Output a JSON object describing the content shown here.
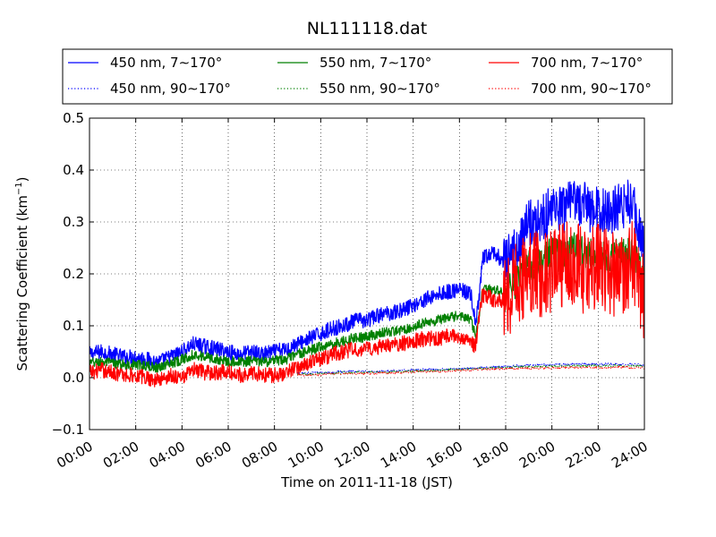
{
  "chart_data": {
    "type": "line",
    "title": "NL111118.dat",
    "xlabel": "Time on 2011-11-18 (JST)",
    "ylabel_prefix": "Scattering Coefficient (km",
    "ylabel_sup": "−1",
    "ylabel_suffix": ")",
    "x_unit": "hour",
    "xlim": [
      0,
      24
    ],
    "ylim": [
      -0.1,
      0.5
    ],
    "xticks": [
      {
        "value": 0,
        "label": "00:00"
      },
      {
        "value": 2,
        "label": "02:00"
      },
      {
        "value": 4,
        "label": "04:00"
      },
      {
        "value": 6,
        "label": "06:00"
      },
      {
        "value": 8,
        "label": "08:00"
      },
      {
        "value": 10,
        "label": "10:00"
      },
      {
        "value": 12,
        "label": "12:00"
      },
      {
        "value": 14,
        "label": "14:00"
      },
      {
        "value": 16,
        "label": "16:00"
      },
      {
        "value": 18,
        "label": "18:00"
      },
      {
        "value": 20,
        "label": "20:00"
      },
      {
        "value": 22,
        "label": "22:00"
      },
      {
        "value": 24,
        "label": "24:00"
      }
    ],
    "yticks": [
      {
        "value": -0.1,
        "label": "−0.1"
      },
      {
        "value": 0.0,
        "label": "0.0"
      },
      {
        "value": 0.1,
        "label": "0.1"
      },
      {
        "value": 0.2,
        "label": "0.2"
      },
      {
        "value": 0.3,
        "label": "0.3"
      },
      {
        "value": 0.4,
        "label": "0.4"
      },
      {
        "value": 0.5,
        "label": "0.5"
      }
    ],
    "grid": true,
    "legend_placement": "top, above plot",
    "series": [
      {
        "name": "450 nm, 7∼170°",
        "color": "#0000ff",
        "dash": "solid",
        "x": [
          0,
          0.5,
          1,
          1.5,
          2,
          2.5,
          3,
          3.5,
          4,
          4.5,
          5,
          5.5,
          6,
          6.5,
          7,
          7.5,
          8,
          8.5,
          9,
          9.5,
          10,
          10.5,
          11,
          11.5,
          12,
          12.5,
          13,
          13.5,
          14,
          14.5,
          15,
          15.5,
          16,
          16.5,
          16.7,
          16.9,
          17,
          17.5,
          18,
          18.5,
          19,
          19.5,
          20,
          20.5,
          21,
          21.5,
          22,
          22.5,
          23,
          23.5,
          24
        ],
        "y": [
          0.045,
          0.05,
          0.045,
          0.04,
          0.04,
          0.035,
          0.03,
          0.04,
          0.05,
          0.065,
          0.06,
          0.055,
          0.05,
          0.045,
          0.05,
          0.045,
          0.05,
          0.055,
          0.065,
          0.075,
          0.085,
          0.095,
          0.1,
          0.11,
          0.11,
          0.12,
          0.125,
          0.13,
          0.14,
          0.15,
          0.16,
          0.165,
          0.17,
          0.16,
          0.1,
          0.17,
          0.23,
          0.24,
          0.22,
          0.25,
          0.3,
          0.3,
          0.33,
          0.32,
          0.34,
          0.33,
          0.32,
          0.32,
          0.33,
          0.34,
          0.24
        ],
        "noise": 0.015
      },
      {
        "name": "550 nm, 7∼170°",
        "color": "#008000",
        "dash": "solid",
        "x": [
          0,
          0.5,
          1,
          1.5,
          2,
          2.5,
          3,
          3.5,
          4,
          4.5,
          5,
          5.5,
          6,
          6.5,
          7,
          7.5,
          8,
          8.5,
          9,
          9.5,
          10,
          10.5,
          11,
          11.5,
          12,
          12.5,
          13,
          13.5,
          14,
          14.5,
          15,
          15.5,
          16,
          16.5,
          16.7,
          16.9,
          17,
          17.5,
          18,
          18.5,
          19,
          19.5,
          20,
          20.5,
          21,
          21.5,
          22,
          22.5,
          23,
          23.5,
          24
        ],
        "y": [
          0.028,
          0.03,
          0.028,
          0.025,
          0.025,
          0.022,
          0.02,
          0.028,
          0.035,
          0.045,
          0.04,
          0.035,
          0.032,
          0.03,
          0.032,
          0.03,
          0.032,
          0.035,
          0.045,
          0.052,
          0.06,
          0.065,
          0.07,
          0.078,
          0.078,
          0.085,
          0.088,
          0.092,
          0.098,
          0.105,
          0.11,
          0.115,
          0.12,
          0.11,
          0.08,
          0.13,
          0.17,
          0.17,
          0.16,
          0.19,
          0.22,
          0.22,
          0.24,
          0.23,
          0.25,
          0.24,
          0.23,
          0.23,
          0.24,
          0.24,
          0.18
        ],
        "noise": 0.01
      },
      {
        "name": "700 nm, 7∼170°",
        "color": "#ff0000",
        "dash": "solid",
        "x": [
          0,
          0.5,
          1,
          1.5,
          2,
          2.5,
          3,
          3.5,
          4,
          4.5,
          5,
          5.5,
          6,
          6.5,
          7,
          7.5,
          8,
          8.5,
          9,
          9.5,
          10,
          10.5,
          11,
          11.5,
          12,
          12.5,
          13,
          13.5,
          14,
          14.5,
          15,
          15.5,
          16,
          16.5,
          16.7,
          16.9,
          17,
          17.5,
          18,
          18.5,
          19,
          19.5,
          20,
          20.5,
          21,
          21.5,
          22,
          22.5,
          23,
          23.5,
          24
        ],
        "y": [
          0.01,
          0.015,
          0.01,
          0.005,
          0.005,
          0.0,
          -0.005,
          0.005,
          0.0,
          0.015,
          0.01,
          0.01,
          0.01,
          0.005,
          0.01,
          0.005,
          0.005,
          0.01,
          0.02,
          0.03,
          0.035,
          0.045,
          0.05,
          0.055,
          0.055,
          0.06,
          0.06,
          0.065,
          0.07,
          0.075,
          0.075,
          0.08,
          0.08,
          0.07,
          0.06,
          0.14,
          0.16,
          0.15,
          0.15,
          0.18,
          0.2,
          0.2,
          0.2,
          0.22,
          0.22,
          0.2,
          0.22,
          0.2,
          0.2,
          0.22,
          0.15
        ],
        "noise": 0.015
      },
      {
        "name": "450 nm, 90∼170°",
        "color": "#0000ff",
        "dash": "dotted",
        "x": [
          9,
          10,
          11,
          12,
          13,
          14,
          15,
          16,
          17,
          18,
          19,
          20,
          21,
          22,
          23,
          24
        ],
        "y": [
          0.008,
          0.01,
          0.012,
          0.012,
          0.013,
          0.015,
          0.016,
          0.018,
          0.02,
          0.022,
          0.024,
          0.025,
          0.026,
          0.026,
          0.026,
          0.025
        ],
        "noise": 0.002
      },
      {
        "name": "550 nm, 90∼170°",
        "color": "#008000",
        "dash": "dotted",
        "x": [
          9,
          10,
          11,
          12,
          13,
          14,
          15,
          16,
          17,
          18,
          19,
          20,
          21,
          22,
          23,
          24
        ],
        "y": [
          0.006,
          0.008,
          0.01,
          0.01,
          0.011,
          0.013,
          0.014,
          0.016,
          0.018,
          0.02,
          0.021,
          0.022,
          0.023,
          0.023,
          0.023,
          0.022
        ],
        "noise": 0.002
      },
      {
        "name": "700 nm, 90∼170°",
        "color": "#ff0000",
        "dash": "dotted",
        "x": [
          9,
          10,
          11,
          12,
          13,
          14,
          15,
          16,
          17,
          18,
          19,
          20,
          21,
          22,
          23,
          24
        ],
        "y": [
          0.004,
          0.006,
          0.008,
          0.008,
          0.009,
          0.011,
          0.012,
          0.014,
          0.016,
          0.017,
          0.018,
          0.019,
          0.02,
          0.02,
          0.02,
          0.019
        ],
        "noise": 0.002
      }
    ]
  }
}
